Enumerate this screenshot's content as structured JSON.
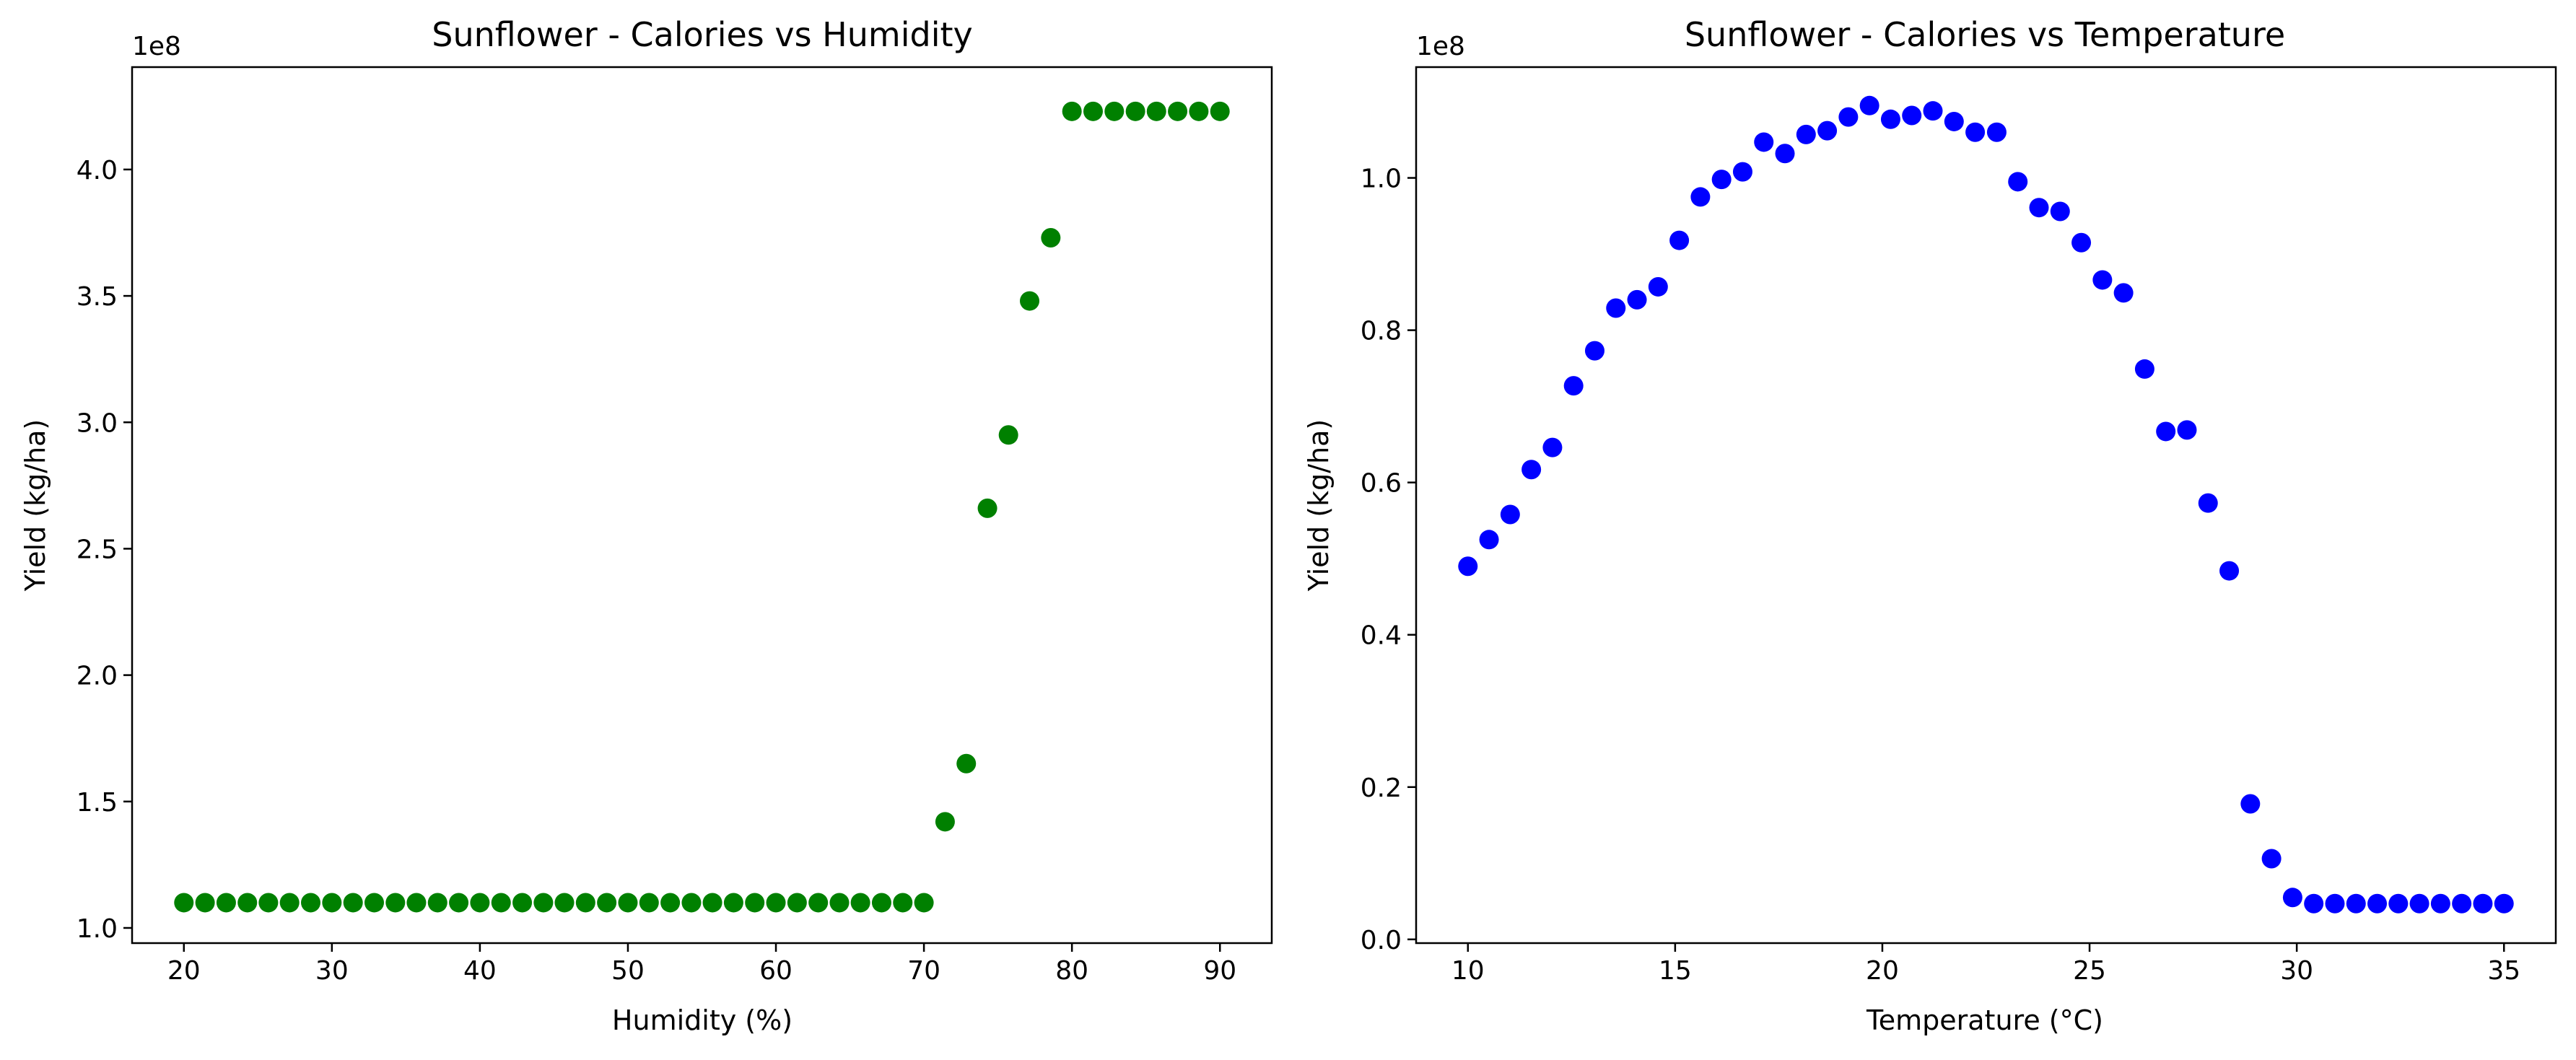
{
  "chart_data": [
    {
      "type": "scatter",
      "title": "Sunflower - Calories vs Humidity",
      "xlabel": "Humidity (%)",
      "ylabel": "Yield (kg/ha)",
      "y_offset_label": "1e8",
      "xlim": [
        16.5,
        93.5
      ],
      "ylim": [
        0.94,
        4.405
      ],
      "x_ticks": [
        20,
        30,
        40,
        50,
        60,
        70,
        80,
        90
      ],
      "x_tick_labels": [
        "20",
        "30",
        "40",
        "50",
        "60",
        "70",
        "80",
        "90"
      ],
      "y_ticks": [
        1.0,
        1.5,
        2.0,
        2.5,
        3.0,
        3.5,
        4.0
      ],
      "y_tick_labels": [
        "1.0",
        "1.5",
        "2.0",
        "2.5",
        "3.0",
        "3.5",
        "4.0"
      ],
      "grid": false,
      "color": "#008000",
      "series": [
        {
          "x": [
            20.0,
            21.43,
            22.86,
            24.29,
            25.71,
            27.14,
            28.57,
            30.0,
            31.43,
            32.86,
            34.29,
            35.71,
            37.14,
            38.57,
            40.0,
            41.43,
            42.86,
            44.29,
            45.71,
            47.14,
            48.57,
            50.0,
            51.43,
            52.86,
            54.29,
            55.71,
            57.14,
            58.57,
            60.0,
            61.43,
            62.86,
            64.29,
            65.71,
            67.14,
            68.57,
            70.0,
            71.43,
            72.86,
            74.29,
            75.71,
            77.14,
            78.57,
            80.0,
            81.43,
            82.86,
            84.29,
            85.71,
            87.14,
            88.57,
            90.0
          ],
          "y": [
            1.1,
            1.1,
            1.1,
            1.1,
            1.1,
            1.1,
            1.1,
            1.1,
            1.1,
            1.1,
            1.1,
            1.1,
            1.1,
            1.1,
            1.1,
            1.1,
            1.1,
            1.1,
            1.1,
            1.1,
            1.1,
            1.1,
            1.1,
            1.1,
            1.1,
            1.1,
            1.1,
            1.1,
            1.1,
            1.1,
            1.1,
            1.1,
            1.1,
            1.1,
            1.1,
            1.1,
            1.42,
            1.65,
            2.66,
            2.95,
            3.48,
            3.73,
            4.23,
            4.23,
            4.23,
            4.23,
            4.23,
            4.23,
            4.23,
            4.23
          ]
        }
      ]
    },
    {
      "type": "scatter",
      "title": "Sunflower - Calories vs Temperature",
      "xlabel": "Temperature (°C)",
      "ylabel": "Yield (kg/ha)",
      "y_offset_label": "1e8",
      "xlim": [
        8.75,
        36.25
      ],
      "ylim": [
        -0.0049,
        1.1455
      ],
      "x_ticks": [
        10,
        15,
        20,
        25,
        30,
        35
      ],
      "x_tick_labels": [
        "10",
        "15",
        "20",
        "25",
        "30",
        "35"
      ],
      "y_ticks": [
        0.0,
        0.2,
        0.4,
        0.6,
        0.8,
        1.0
      ],
      "y_tick_labels": [
        "0.0",
        "0.2",
        "0.4",
        "0.6",
        "0.8",
        "1.0"
      ],
      "grid": false,
      "color": "#0000ff",
      "series": [
        {
          "x": [
            10.0,
            10.51,
            11.02,
            11.53,
            12.04,
            12.55,
            13.06,
            13.57,
            14.08,
            14.59,
            15.1,
            15.61,
            16.12,
            16.63,
            17.14,
            17.65,
            18.16,
            18.67,
            19.18,
            19.69,
            20.2,
            20.71,
            21.22,
            21.73,
            22.24,
            22.76,
            23.27,
            23.78,
            24.29,
            24.8,
            25.31,
            25.82,
            26.33,
            26.84,
            27.35,
            27.86,
            28.37,
            28.88,
            29.39,
            29.9,
            30.41,
            30.92,
            31.43,
            31.94,
            32.45,
            32.96,
            33.47,
            33.98,
            34.49,
            35.0
          ],
          "y": [
            0.49,
            0.525,
            0.558,
            0.617,
            0.646,
            0.727,
            0.773,
            0.829,
            0.84,
            0.857,
            0.918,
            0.975,
            0.998,
            1.008,
            1.047,
            1.032,
            1.057,
            1.062,
            1.08,
            1.095,
            1.077,
            1.082,
            1.088,
            1.074,
            1.06,
            1.06,
            0.995,
            0.961,
            0.956,
            0.915,
            0.866,
            0.849,
            0.749,
            0.667,
            0.669,
            0.573,
            0.484,
            0.178,
            0.106,
            0.055,
            0.047,
            0.047,
            0.047,
            0.047,
            0.047,
            0.047,
            0.047,
            0.047,
            0.047,
            0.047
          ]
        }
      ]
    }
  ]
}
